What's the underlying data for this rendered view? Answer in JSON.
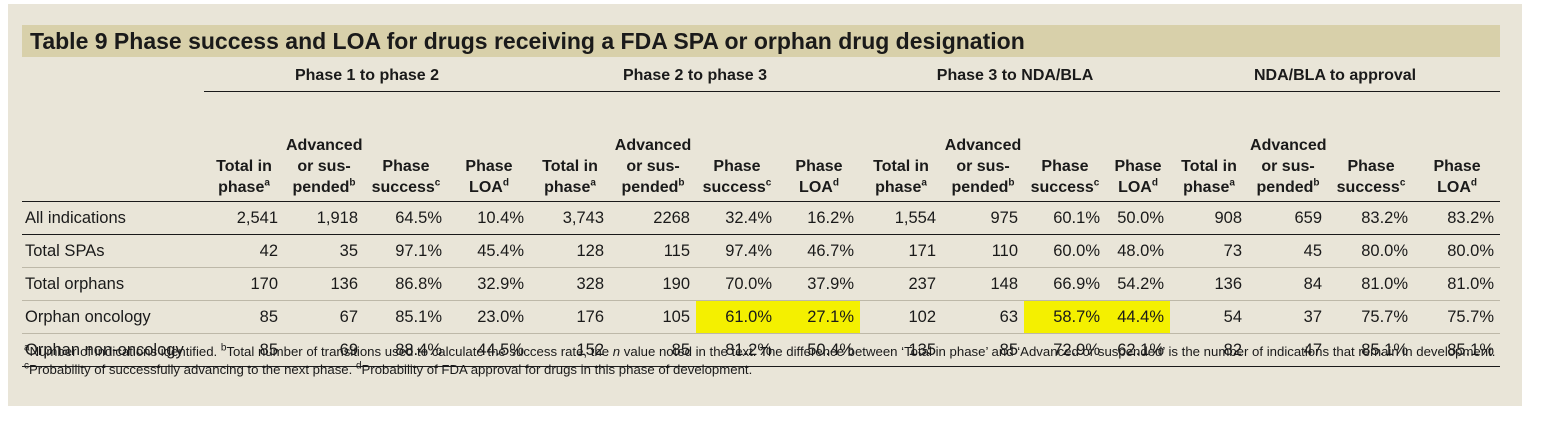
{
  "title": "Table 9  Phase success and LOA for drugs receiving a FDA SPA or orphan drug designation",
  "groups": [
    "Phase 1 to phase 2",
    "Phase 2 to phase 3",
    "Phase 3 to NDA/BLA",
    "NDA/BLA to approval"
  ],
  "subheaders": {
    "total": "Total in phase",
    "advanced": "Advanced or sus-pended",
    "success": "Phase success",
    "loa": "Phase LOA",
    "sup_a": "a",
    "sup_b": "b",
    "sup_c": "c",
    "sup_d": "d"
  },
  "rows": [
    {
      "label": "All indications",
      "cells": [
        "2,541",
        "1,918",
        "64.5%",
        "10.4%",
        "3,743",
        "2268",
        "32.4%",
        "16.2%",
        "1,554",
        "975",
        "60.1%",
        "50.0%",
        "908",
        "659",
        "83.2%",
        "83.2%"
      ]
    },
    {
      "label": "Total SPAs",
      "cells": [
        "42",
        "35",
        "97.1%",
        "45.4%",
        "128",
        "115",
        "97.4%",
        "46.7%",
        "171",
        "110",
        "60.0%",
        "48.0%",
        "73",
        "45",
        "80.0%",
        "80.0%"
      ]
    },
    {
      "label": "Total orphans",
      "cells": [
        "170",
        "136",
        "86.8%",
        "32.9%",
        "328",
        "190",
        "70.0%",
        "37.9%",
        "237",
        "148",
        "66.9%",
        "54.2%",
        "136",
        "84",
        "81.0%",
        "81.0%"
      ]
    },
    {
      "label": "Orphan oncology",
      "cells": [
        "85",
        "67",
        "85.1%",
        "23.0%",
        "176",
        "105",
        "61.0%",
        "27.1%",
        "102",
        "63",
        "58.7%",
        "44.4%",
        "54",
        "37",
        "75.7%",
        "75.7%"
      ]
    },
    {
      "label": "Orphan non-oncology",
      "cells": [
        "85",
        "69",
        "88.4%",
        "44.5%",
        "152",
        "85",
        "81.2%",
        "50.4%",
        "135",
        "85",
        "72.9%",
        "62.1%",
        "82",
        "47",
        "85.1%",
        "85.1%"
      ]
    }
  ],
  "highlight_color": "#f4f000",
  "highlighted_cells": [
    [
      3,
      6
    ],
    [
      3,
      7
    ],
    [
      3,
      10
    ],
    [
      3,
      11
    ]
  ],
  "footnotes": [
    {
      "mark": "a",
      "text": "Number of indications identified. "
    },
    {
      "mark": "b",
      "text": "Total number of transitions used to calculate the success rate, the "
    },
    {
      "italic": "n"
    },
    {
      "text": " value noted in the text. The difference between ‘Total in phase’ and ‘Advanced or suspended’ is the number of indications that remain in development. "
    },
    {
      "mark": "c",
      "text": "Probability of successfully advancing to the next phase. "
    },
    {
      "mark": "d",
      "text": "Probability of FDA approval for drugs in this phase of development."
    }
  ]
}
